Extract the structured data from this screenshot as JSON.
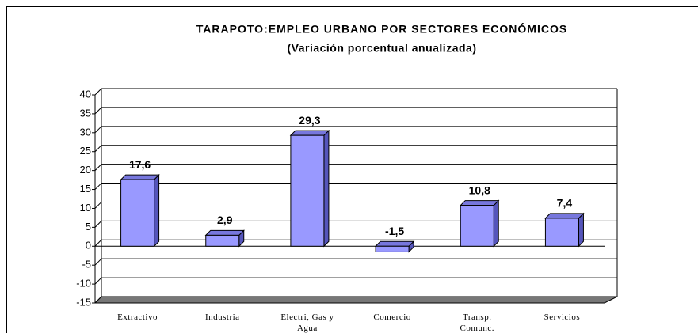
{
  "chart_data": {
    "type": "bar3d",
    "title": "TARAPOTO:EMPLEO URBANO POR SECTORES ECONÓMICOS",
    "subtitle": "(Variación porcentual anualizada)",
    "categories": [
      "Extractivo",
      "Industria",
      "Electri, Gas y Agua",
      "Comercio",
      "Transp. Comunc.",
      "Servicios"
    ],
    "values": [
      17.6,
      2.9,
      29.3,
      -1.5,
      10.8,
      7.4
    ],
    "value_labels": [
      "17,6",
      "2,9",
      "29,3",
      "-1,5",
      "10,8",
      "7,4"
    ],
    "color": "#9999ff",
    "ylim": [
      -15,
      40
    ],
    "yticks": [
      -15,
      -10,
      -5,
      0,
      5,
      10,
      15,
      20,
      25,
      30,
      35,
      40
    ],
    "grid": true
  }
}
